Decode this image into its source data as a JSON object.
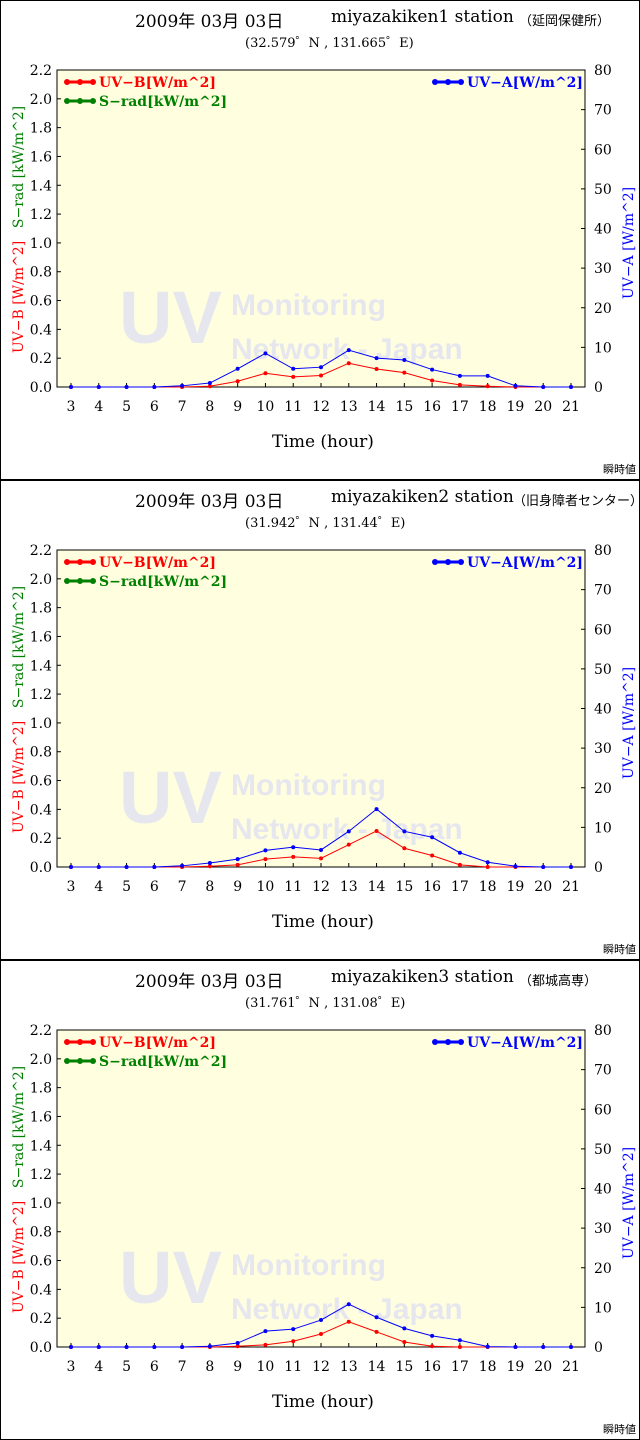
{
  "colors": {
    "uvb": "#ff0000",
    "srad": "#008000",
    "uva": "#0000ff",
    "plot_bg": "#ffffe0"
  },
  "watermark": {
    "big": "UV",
    "line1": "Monitoring",
    "line2": "Network - Japan"
  },
  "chart_data": [
    {
      "type": "line",
      "date": "2009年 03月 03日",
      "station": "miyazakiken1 station",
      "location": "（延岡保健所）",
      "coords": "(32.579゜N , 131.665゜E)",
      "note": "瞬時値",
      "xlabel": "Time (hour)",
      "ylabel_left_uvb": "UV−B [W/m^2]",
      "ylabel_left_srad": "S−rad [kW/m^2]",
      "ylabel_right": "UV−A [W/m^2]",
      "xlim": [
        3,
        21
      ],
      "ylim_left": [
        0,
        2.2
      ],
      "ylim_right": [
        0,
        80
      ],
      "left_ticks": [
        "0.0",
        "0.2",
        "0.4",
        "0.6",
        "0.8",
        "1.0",
        "1.2",
        "1.4",
        "1.6",
        "1.8",
        "2.0",
        "2.2"
      ],
      "right_ticks": [
        "0",
        "10",
        "20",
        "30",
        "40",
        "50",
        "60",
        "70",
        "80"
      ],
      "x_ticks": [
        "3",
        "4",
        "5",
        "6",
        "7",
        "8",
        "9",
        "10",
        "11",
        "12",
        "13",
        "14",
        "15",
        "16",
        "17",
        "18",
        "19",
        "20",
        "21"
      ],
      "legend": {
        "uvb": "UV−B[W/m^2]",
        "srad": "S−rad[kW/m^2]",
        "uva": "UV−A[W/m^2]"
      },
      "series": [
        {
          "name": "UV−B[W/m^2]",
          "axis": "left",
          "x": [
            3,
            4,
            5,
            6,
            7,
            8,
            9,
            10,
            11,
            12,
            13,
            14,
            15,
            16,
            17,
            18,
            19,
            20,
            21
          ],
          "values": [
            0,
            0,
            0,
            0,
            0,
            0.005,
            0.04,
            0.095,
            0.07,
            0.08,
            0.165,
            0.125,
            0.1,
            0.045,
            0.015,
            0.005,
            0,
            0,
            0
          ]
        },
        {
          "name": "UV−A[W/m^2]",
          "axis": "right",
          "x": [
            3,
            4,
            5,
            6,
            7,
            8,
            9,
            10,
            11,
            12,
            13,
            14,
            15,
            16,
            17,
            18,
            19,
            20,
            21
          ],
          "values": [
            0,
            0,
            0,
            0,
            0.3,
            1,
            4.6,
            8.5,
            4.6,
            5,
            9.3,
            7.3,
            6.8,
            4.4,
            2.8,
            2.8,
            0.3,
            0,
            0
          ]
        }
      ]
    },
    {
      "type": "line",
      "date": "2009年 03月 03日",
      "station": "miyazakiken2 station",
      "location": "（旧身障者センター）",
      "coords": "(31.942゜N , 131.44゜E)",
      "note": "瞬時値",
      "xlabel": "Time (hour)",
      "ylabel_left_uvb": "UV−B [W/m^2]",
      "ylabel_left_srad": "S−rad [kW/m^2]",
      "ylabel_right": "UV−A [W/m^2]",
      "xlim": [
        3,
        21
      ],
      "ylim_left": [
        0,
        2.2
      ],
      "ylim_right": [
        0,
        80
      ],
      "left_ticks": [
        "0.0",
        "0.2",
        "0.4",
        "0.6",
        "0.8",
        "1.0",
        "1.2",
        "1.4",
        "1.6",
        "1.8",
        "2.0",
        "2.2"
      ],
      "right_ticks": [
        "0",
        "10",
        "20",
        "30",
        "40",
        "50",
        "60",
        "70",
        "80"
      ],
      "x_ticks": [
        "3",
        "4",
        "5",
        "6",
        "7",
        "8",
        "9",
        "10",
        "11",
        "12",
        "13",
        "14",
        "15",
        "16",
        "17",
        "18",
        "19",
        "20",
        "21"
      ],
      "legend": {
        "uvb": "UV−B[W/m^2]",
        "srad": "S−rad[kW/m^2]",
        "uva": "UV−A[W/m^2]"
      },
      "series": [
        {
          "name": "UV−B[W/m^2]",
          "axis": "left",
          "x": [
            3,
            4,
            5,
            6,
            7,
            8,
            9,
            10,
            11,
            12,
            13,
            14,
            15,
            16,
            17,
            18,
            19,
            20,
            21
          ],
          "values": [
            0,
            0,
            0,
            0,
            0,
            0.005,
            0.015,
            0.055,
            0.07,
            0.06,
            0.155,
            0.25,
            0.13,
            0.08,
            0.015,
            0,
            0,
            0,
            0
          ]
        },
        {
          "name": "UV−A[W/m^2]",
          "axis": "right",
          "x": [
            3,
            4,
            5,
            6,
            7,
            8,
            9,
            10,
            11,
            12,
            13,
            14,
            15,
            16,
            17,
            18,
            19,
            20,
            21
          ],
          "values": [
            0,
            0,
            0,
            0,
            0.3,
            1,
            2,
            4.2,
            5,
            4.3,
            9,
            14.6,
            9,
            7.5,
            3.6,
            1.2,
            0.2,
            0,
            0
          ]
        }
      ]
    },
    {
      "type": "line",
      "date": "2009年 03月 03日",
      "station": "miyazakiken3 station",
      "location": "（都城高専）",
      "coords": "(31.761゜N , 131.08゜E)",
      "note": "瞬時値",
      "xlabel": "Time (hour)",
      "ylabel_left_uvb": "UV−B [W/m^2]",
      "ylabel_left_srad": "S−rad [kW/m^2]",
      "ylabel_right": "UV−A [W/m^2]",
      "xlim": [
        3,
        21
      ],
      "ylim_left": [
        0,
        2.2
      ],
      "ylim_right": [
        0,
        80
      ],
      "left_ticks": [
        "0.0",
        "0.2",
        "0.4",
        "0.6",
        "0.8",
        "1.0",
        "1.2",
        "1.4",
        "1.6",
        "1.8",
        "2.0",
        "2.2"
      ],
      "right_ticks": [
        "0",
        "10",
        "20",
        "30",
        "40",
        "50",
        "60",
        "70",
        "80"
      ],
      "x_ticks": [
        "3",
        "4",
        "5",
        "6",
        "7",
        "8",
        "9",
        "10",
        "11",
        "12",
        "13",
        "14",
        "15",
        "16",
        "17",
        "18",
        "19",
        "20",
        "21"
      ],
      "legend": {
        "uvb": "UV−B[W/m^2]",
        "srad": "S−rad[kW/m^2]",
        "uva": "UV−A[W/m^2]"
      },
      "series": [
        {
          "name": "UV−B[W/m^2]",
          "axis": "left",
          "x": [
            3,
            4,
            5,
            6,
            7,
            8,
            9,
            10,
            11,
            12,
            13,
            14,
            15,
            16,
            17,
            18,
            19,
            20,
            21
          ],
          "values": [
            0,
            0,
            0,
            0,
            0,
            0,
            0.005,
            0.015,
            0.04,
            0.09,
            0.175,
            0.105,
            0.035,
            0.005,
            0,
            0,
            0,
            0,
            0
          ]
        },
        {
          "name": "UV−A[W/m^2]",
          "axis": "right",
          "x": [
            3,
            4,
            5,
            6,
            7,
            8,
            9,
            10,
            11,
            12,
            13,
            14,
            15,
            16,
            17,
            18,
            19,
            20,
            21
          ],
          "values": [
            0,
            0,
            0,
            0,
            0,
            0.2,
            1,
            4,
            4.5,
            6.8,
            10.8,
            7.5,
            4.7,
            2.8,
            1.7,
            0.1,
            0,
            0,
            0
          ]
        }
      ]
    }
  ]
}
